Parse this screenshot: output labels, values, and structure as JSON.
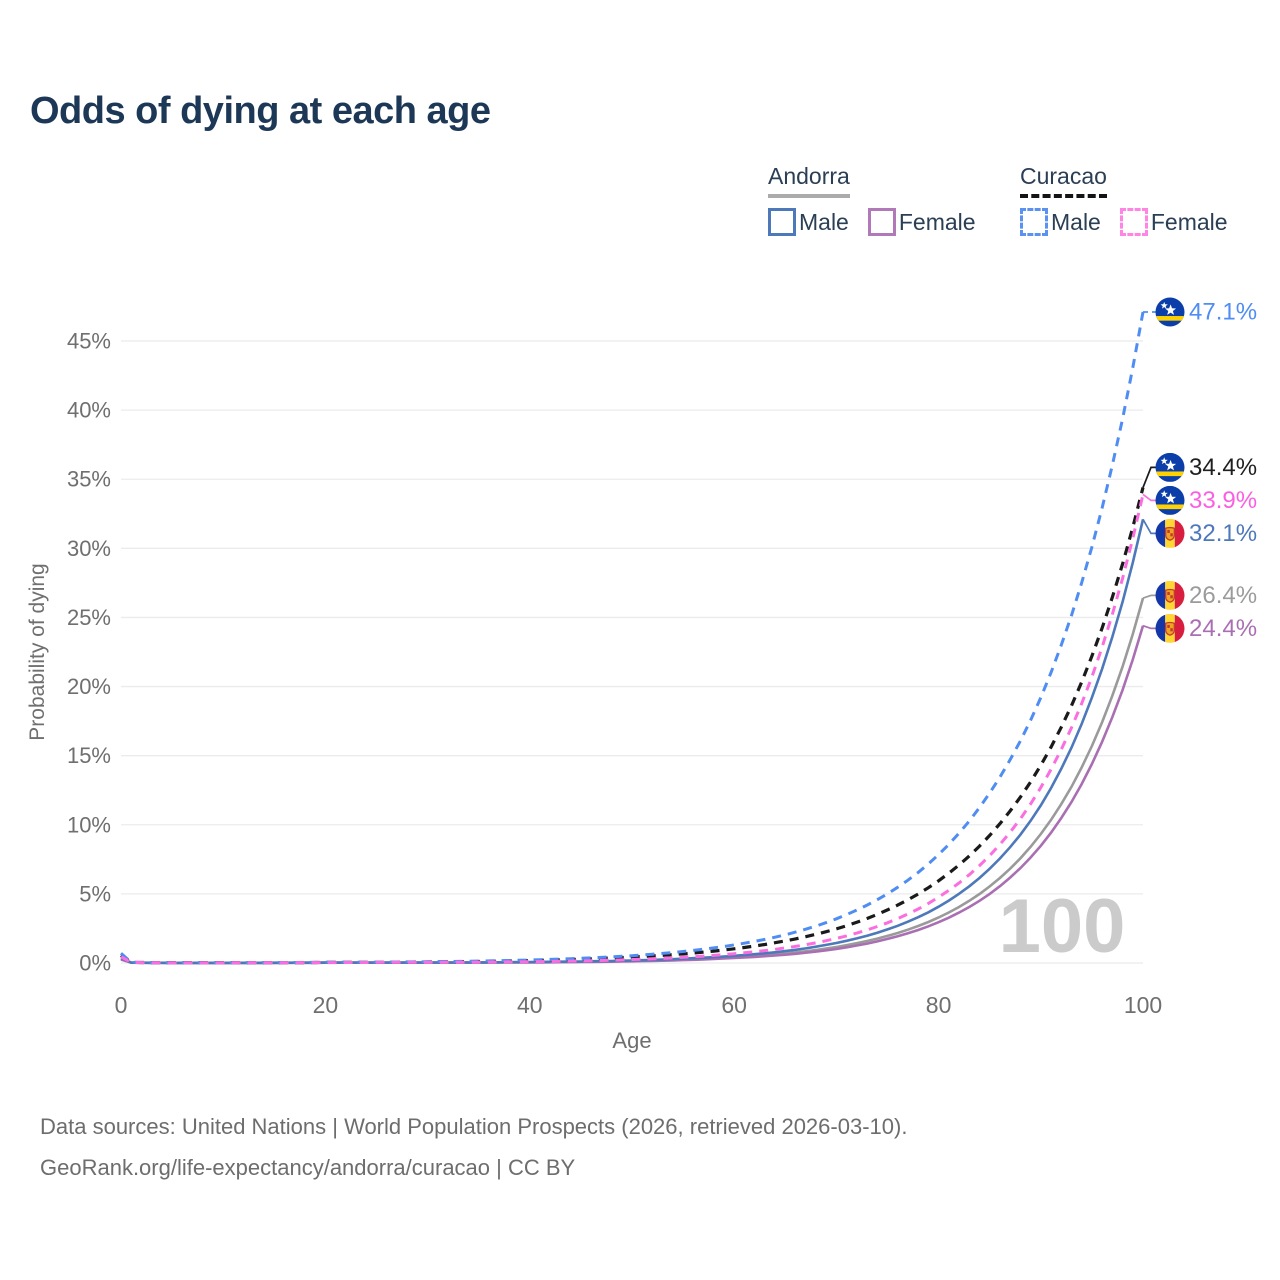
{
  "title": "Odds of dying at each age",
  "watermark": "100",
  "legend": {
    "groups": [
      {
        "name": "Andorra",
        "line_style": "solid",
        "underline_color": "#ababab",
        "items": [
          {
            "label": "Male",
            "color": "#4d78ba"
          },
          {
            "label": "Female",
            "color": "#b279b8"
          }
        ]
      },
      {
        "name": "Curacao",
        "line_style": "dashed",
        "underline_color": "#141414",
        "items": [
          {
            "label": "Male",
            "color": "#5b92f0"
          },
          {
            "label": "Female",
            "color": "#ff85e4"
          }
        ]
      }
    ]
  },
  "footer": {
    "line1": "Data sources: United Nations | World Population Prospects (2026, retrieved 2026-03-10).",
    "line2": "GeoRank.org/life-expectancy/andorra/curacao | CC BY"
  },
  "chart_data": {
    "type": "line",
    "title": "Odds of dying at each age",
    "xlabel": "Age",
    "ylabel": "Probability of dying",
    "xlim": [
      0,
      100
    ],
    "ylim": [
      0,
      47.5
    ],
    "x_ticks": [
      0,
      20,
      40,
      60,
      80,
      100
    ],
    "y_ticks": [
      0,
      5,
      10,
      15,
      20,
      25,
      30,
      35,
      40,
      45
    ],
    "y_tick_suffix": "%",
    "grid": "horizontal",
    "legend_position": "top-right",
    "ages": [
      0,
      1,
      5,
      10,
      15,
      20,
      25,
      30,
      35,
      40,
      45,
      50,
      55,
      60,
      65,
      70,
      75,
      80,
      85,
      90,
      95,
      100
    ],
    "series": [
      {
        "id": "andorra-total",
        "name": "Andorra",
        "country": "Andorra",
        "sex": "Both",
        "flag": "andorra",
        "color": "#9a9a9a",
        "label_color": "#9b9b9b",
        "line_style": "solid",
        "line_width": 2.6,
        "leader_style": "solid",
        "end_label": "26.4%",
        "values": [
          0.3,
          0.03,
          0.01,
          0.01,
          0.01,
          0.02,
          0.02,
          0.03,
          0.03,
          0.05,
          0.09,
          0.15,
          0.24,
          0.41,
          0.69,
          1.16,
          1.96,
          3.29,
          5.54,
          9.33,
          15.7,
          26.4
        ]
      },
      {
        "id": "andorra-female",
        "name": "Andorra Female",
        "country": "Andorra",
        "sex": "Female",
        "flag": "andorra",
        "color": "#a96fb2",
        "label_color": "#a96fb2",
        "line_style": "solid",
        "line_width": 2.6,
        "leader_style": "solid",
        "end_label": "24.4%",
        "values": [
          0.25,
          0.02,
          0.01,
          0.01,
          0.01,
          0.02,
          0.02,
          0.02,
          0.03,
          0.04,
          0.07,
          0.12,
          0.21,
          0.36,
          0.6,
          1.02,
          1.74,
          2.95,
          5.0,
          8.48,
          14.4,
          24.4
        ]
      },
      {
        "id": "andorra-male",
        "name": "Andorra Male",
        "country": "Andorra",
        "sex": "Male",
        "flag": "andorra",
        "color": "#4d78ba",
        "label_color": "#4d78ba",
        "line_style": "solid",
        "line_width": 2.6,
        "leader_style": "solid",
        "end_label": "32.1%",
        "values": [
          0.35,
          0.03,
          0.01,
          0.01,
          0.02,
          0.03,
          0.03,
          0.03,
          0.04,
          0.07,
          0.11,
          0.18,
          0.31,
          0.52,
          0.86,
          1.45,
          2.43,
          4.07,
          6.82,
          11.4,
          19.2,
          32.1
        ]
      },
      {
        "id": "curacao-total",
        "name": "Curacao",
        "country": "Curacao",
        "sex": "Both",
        "flag": "curacao",
        "color": "#1a1a1a",
        "label_color": "#1f1f1f",
        "line_style": "dashed",
        "line_width": 3.2,
        "leader_style": "solid",
        "end_label": "34.4%",
        "values": [
          0.55,
          0.04,
          0.02,
          0.02,
          0.02,
          0.04,
          0.05,
          0.07,
          0.11,
          0.18,
          0.28,
          0.43,
          0.66,
          1.03,
          1.6,
          2.47,
          3.84,
          5.95,
          9.23,
          14.3,
          22.2,
          34.4
        ]
      },
      {
        "id": "curacao-male",
        "name": "Curacao Male",
        "country": "Curacao",
        "sex": "Male",
        "flag": "curacao",
        "color": "#4f8df3",
        "label_color": "#4f8df3",
        "line_style": "dashed",
        "line_width": 3,
        "leader_style": "dashed",
        "end_label": "47.1%",
        "values": [
          0.7,
          0.05,
          0.02,
          0.02,
          0.03,
          0.05,
          0.06,
          0.09,
          0.14,
          0.22,
          0.34,
          0.53,
          0.83,
          1.31,
          2.04,
          3.2,
          5.01,
          7.84,
          12.3,
          19.2,
          30.1,
          47.1
        ]
      },
      {
        "id": "curacao-female",
        "name": "Curacao Female",
        "country": "Curacao",
        "sex": "Female",
        "flag": "curacao",
        "color": "#fb6ee0",
        "label_color": "#fb5fe1",
        "line_style": "dashed",
        "line_width": 3,
        "leader_style": "solid",
        "end_label": "33.9%",
        "values": [
          0.45,
          0.04,
          0.01,
          0.01,
          0.02,
          0.03,
          0.04,
          0.04,
          0.06,
          0.09,
          0.15,
          0.25,
          0.41,
          0.67,
          1.09,
          1.78,
          2.91,
          4.76,
          7.77,
          12.7,
          20.7,
          33.9
        ]
      }
    ],
    "colors": {
      "axis_text": "#6f6f6f",
      "gridline": "#ebebeb",
      "watermark": "#cbcbcb",
      "title_text": "#1d3756"
    }
  }
}
